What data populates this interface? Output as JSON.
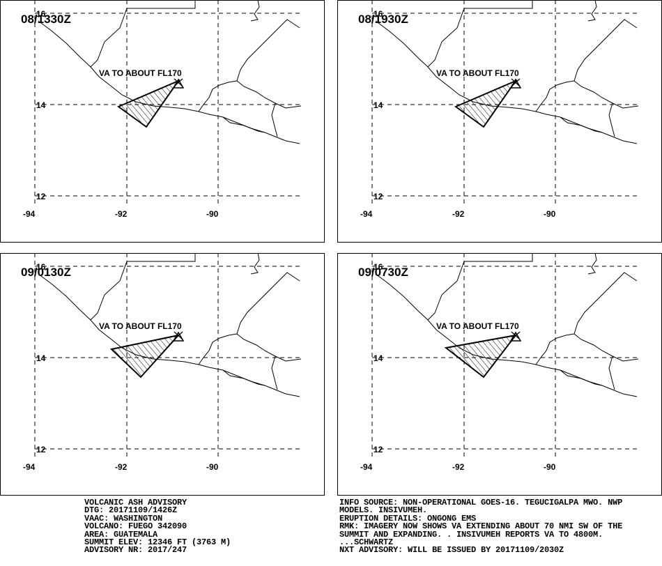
{
  "panels": [
    {
      "time": "08/1330Z",
      "plume": [
        [
          170,
          153
        ],
        [
          256,
          116
        ],
        [
          210,
          182
        ]
      ]
    },
    {
      "time": "08/1930Z",
      "plume": [
        [
          170,
          153
        ],
        [
          256,
          116
        ],
        [
          210,
          182
        ]
      ]
    },
    {
      "time": "09/0130Z",
      "plume": [
        [
          160,
          138
        ],
        [
          256,
          118
        ],
        [
          202,
          178
        ]
      ]
    },
    {
      "time": "09/0730Z",
      "plume": [
        [
          156,
          136
        ],
        [
          256,
          118
        ],
        [
          210,
          178
        ]
      ]
    }
  ],
  "map": {
    "lat_labels": [
      "16",
      "14",
      "12"
    ],
    "lon_labels": [
      "-94",
      "-92",
      "-90"
    ],
    "plume_label": "VA TO ABOUT FL170",
    "volcano_marker": "volcano-icon"
  },
  "advisory_left": [
    "VOLCANIC ASH ADVISORY",
    "DTG: 20171109/1426Z",
    "VAAC: WASHINGTON",
    "VOLCANO: FUEGO 342090",
    "AREA: GUATEMALA",
    "SUMMIT ELEV: 12346 FT (3763 M)",
    "ADVISORY NR: 2017/247"
  ],
  "advisory_right": [
    "INFO SOURCE: NON-OPERATIONAL GOES-16. TEGUCIGALPA MWO. NWP",
    "MODELS. INSIVUMEH.",
    "ERUPTION DETAILS: ONGONG EMS",
    "RMK: IMAGERY NOW SHOWS VA EXTENDING ABOUT 70 NMI SW OF THE",
    "SUMMIT AND EXPANDING. . INSIVUMEH REPORTS VA TO 4800M.",
    "...SCHWARTZ",
    "NXT ADVISORY: WILL BE ISSUED BY 20171109/2030Z"
  ]
}
